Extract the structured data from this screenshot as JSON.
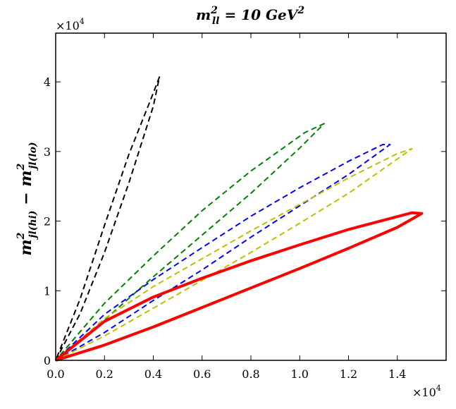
{
  "chart_data": {
    "type": "line",
    "title": {
      "base": "m",
      "sup": "2",
      "sub": "ll",
      "rest": " = 10 GeV",
      "rest_sup": "2"
    },
    "ylabel": {
      "t1_base": "m",
      "t1_sup": "2",
      "t1_sub": "jl(hi)",
      "op": " − ",
      "t2_base": "m",
      "t2_sup": "2",
      "t2_sub": "jl(lo)"
    },
    "xlabel": "",
    "x_multiplier": {
      "base": "×10",
      "exp": "4"
    },
    "y_multiplier": {
      "base": "×10",
      "exp": "4"
    },
    "xlim": [
      0,
      16000
    ],
    "ylim": [
      0,
      47000
    ],
    "xticks": [
      0,
      2000,
      4000,
      6000,
      8000,
      10000,
      12000,
      14000
    ],
    "xtick_labels": [
      "0.0",
      "0.2",
      "0.4",
      "0.6",
      "0.8",
      "1.0",
      "1.2",
      "1.4"
    ],
    "yticks": [
      0,
      10000,
      20000,
      30000,
      40000
    ],
    "ytick_labels": [
      "0",
      "1",
      "2",
      "3",
      "4"
    ],
    "series": [
      {
        "name": "black",
        "color": "#000000",
        "style": "dashed",
        "points": [
          [
            0,
            0
          ],
          [
            1000,
            6700
          ],
          [
            2000,
            15500
          ],
          [
            3000,
            25500
          ],
          [
            4000,
            36500
          ],
          [
            4250,
            40700
          ],
          [
            3900,
            37500
          ],
          [
            3000,
            29600
          ],
          [
            2000,
            19400
          ],
          [
            1000,
            8800
          ],
          [
            0,
            0
          ]
        ]
      },
      {
        "name": "green",
        "color": "#008000",
        "style": "dashed",
        "points": [
          [
            0,
            0
          ],
          [
            2000,
            5800
          ],
          [
            4000,
            12000
          ],
          [
            6000,
            18000
          ],
          [
            8000,
            24000
          ],
          [
            10000,
            30500
          ],
          [
            11000,
            34000
          ],
          [
            10200,
            32700
          ],
          [
            8000,
            27200
          ],
          [
            6000,
            21500
          ],
          [
            4000,
            15000
          ],
          [
            2000,
            8200
          ],
          [
            0,
            0
          ]
        ]
      },
      {
        "name": "blue",
        "color": "#0000ff",
        "style": "dashed",
        "points": [
          [
            0,
            0
          ],
          [
            2000,
            4000
          ],
          [
            4000,
            8600
          ],
          [
            6000,
            13000
          ],
          [
            8000,
            17700
          ],
          [
            10000,
            22200
          ],
          [
            12000,
            26700
          ],
          [
            13700,
            31000
          ],
          [
            13400,
            31000
          ],
          [
            12000,
            28600
          ],
          [
            10000,
            24800
          ],
          [
            8000,
            20700
          ],
          [
            6000,
            16200
          ],
          [
            4000,
            11600
          ],
          [
            2000,
            6600
          ],
          [
            0,
            0
          ]
        ]
      },
      {
        "name": "yellow",
        "color": "#bfbf00",
        "style": "dashed",
        "points": [
          [
            0,
            0
          ],
          [
            2000,
            3500
          ],
          [
            4000,
            7500
          ],
          [
            6000,
            11500
          ],
          [
            8000,
            15500
          ],
          [
            10000,
            19700
          ],
          [
            12000,
            24000
          ],
          [
            14600,
            30400
          ],
          [
            14000,
            29700
          ],
          [
            12000,
            26200
          ],
          [
            10000,
            22400
          ],
          [
            8000,
            18600
          ],
          [
            6000,
            14600
          ],
          [
            4000,
            10600
          ],
          [
            2000,
            6000
          ],
          [
            0,
            0
          ]
        ]
      },
      {
        "name": "red",
        "color": "#ff0000",
        "style": "solid",
        "points": [
          [
            0,
            0
          ],
          [
            2000,
            2200
          ],
          [
            4000,
            4800
          ],
          [
            6000,
            7600
          ],
          [
            8000,
            10400
          ],
          [
            10000,
            13200
          ],
          [
            12000,
            16100
          ],
          [
            14000,
            19100
          ],
          [
            15000,
            21100
          ],
          [
            14600,
            21200
          ],
          [
            12000,
            18800
          ],
          [
            10000,
            16600
          ],
          [
            8000,
            14300
          ],
          [
            6000,
            11800
          ],
          [
            4000,
            9100
          ],
          [
            2000,
            5600
          ],
          [
            0,
            0
          ]
        ]
      }
    ]
  }
}
